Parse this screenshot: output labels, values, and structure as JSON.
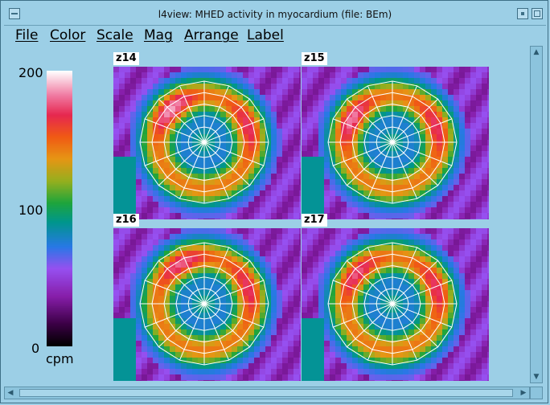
{
  "window": {
    "title": "l4view: MHED activity in myocardium (file: BEm)"
  },
  "menu": [
    "File",
    "Color",
    "Scale",
    "Mag",
    "Arrange",
    "Label"
  ],
  "colorbar": {
    "max_label": "200",
    "mid_label": "100",
    "min_label": "0",
    "unit": "cpm",
    "min_value": 0,
    "max_value": 200
  },
  "panels": [
    {
      "label": "z14",
      "hot_angle": 135,
      "hot_strength": 1.0
    },
    {
      "label": "z15",
      "hot_angle": 150,
      "hot_strength": 0.9
    },
    {
      "label": "z16",
      "hot_angle": 120,
      "hot_strength": 0.8
    },
    {
      "label": "z17",
      "hot_angle": 140,
      "hot_strength": 0.75
    }
  ],
  "icons": [
    "window-menu-icon",
    "minimize-icon",
    "maximize-icon",
    "scroll-up-icon",
    "scroll-down-icon",
    "scroll-left-icon",
    "scroll-right-icon"
  ]
}
